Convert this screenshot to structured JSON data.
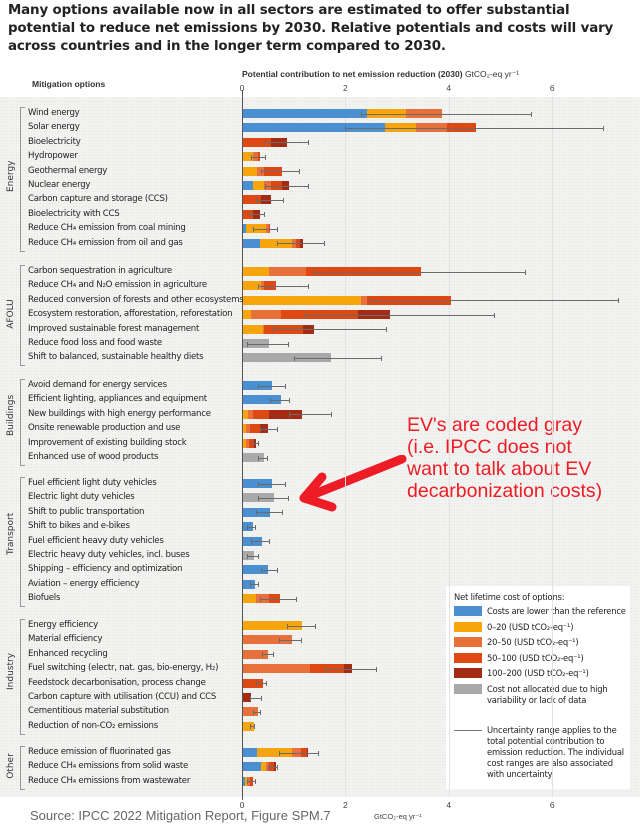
{
  "headline": "Many options available now in all sectors are estimated to offer substantial potential to reduce net emissions by 2030. Relative potentials and costs will vary across countries and in the longer term compared to 2030.",
  "column_headers": {
    "left": "Mitigation options",
    "axis": "Potential contribution to net emission reduction (2030)",
    "axis_unit": "GtCO₂-eq yr⁻¹"
  },
  "annotation": {
    "lines": [
      "EV's are coded gray",
      "(i.e. IPCC does not",
      "want to talk about EV",
      "decarbonization costs)"
    ],
    "color": "#ee1c25"
  },
  "legend": {
    "title": "Net lifetime cost of options:",
    "items": [
      {
        "label": "Costs are lower than the reference",
        "color": "#4a90d0"
      },
      {
        "label": "0–20 (USD tCO₂-eq⁻¹)",
        "color": "#f6a60c"
      },
      {
        "label": "20–50 (USD tCO₂-eq⁻¹)",
        "color": "#e8703a"
      },
      {
        "label": "50–100 (USD tCO₂-eq⁻¹)",
        "color": "#de4812"
      },
      {
        "label": "100–200 (USD tCO₂-eq⁻¹)",
        "color": "#a42c15"
      },
      {
        "label": "Cost not allocated due to high variability or lack of data",
        "color": "#a9a9a9"
      }
    ],
    "uncertainty_note": "Uncertainty range applies to the total potential contribution to emission reduction. The individual cost ranges are also associated with uncertainty"
  },
  "source": "Source: IPCC 2022 Mitigation Report, Figure SPM.7",
  "chart_data": {
    "type": "bar",
    "orientation": "horizontal-stacked",
    "title": "Potential contribution to net emission reduction (2030)",
    "xlabel": "GtCO₂-eq yr⁻¹",
    "xlim": [
      0,
      7.3
    ],
    "xticks": [
      0,
      2,
      4,
      6
    ],
    "grid": true,
    "legend_position": "lower-right",
    "series_names": [
      "Costs lower than reference",
      "0-20",
      "20-50",
      "50-100",
      "100-200",
      "Cost not allocated"
    ],
    "sectors": [
      {
        "name": "Energy",
        "options": [
          {
            "label": "Wind energy",
            "segments": [
              2.4,
              0.75,
              0.7,
              0,
              0,
              0
            ],
            "total": 3.85,
            "range": [
              2.3,
              5.6
            ]
          },
          {
            "label": "Solar energy",
            "segments": [
              2.75,
              0.6,
              0.6,
              0.55,
              0,
              0
            ],
            "total": 4.5,
            "range": [
              2.0,
              7.0
            ]
          },
          {
            "label": "Bioelectricity",
            "segments": [
              0,
              0,
              0,
              0.55,
              0.3,
              0
            ],
            "total": 0.85,
            "range": [
              0.45,
              1.3
            ]
          },
          {
            "label": "Hydropower",
            "segments": [
              0,
              0.2,
              0.1,
              0.02,
              0,
              0
            ],
            "total": 0.32,
            "range": [
              0.17,
              0.47
            ]
          },
          {
            "label": "Geothermal energy",
            "segments": [
              0,
              0.28,
              0.12,
              0.35,
              0,
              0
            ],
            "total": 0.75,
            "range": [
              0.37,
              1.12
            ]
          },
          {
            "label": "Nuclear energy",
            "segments": [
              0.2,
              0.2,
              0.15,
              0.2,
              0.15,
              0
            ],
            "total": 0.9,
            "range": [
              0.45,
              1.3
            ]
          },
          {
            "label": "Carbon capture and storage (CCS)",
            "segments": [
              0,
              0,
              0,
              0.35,
              0.2,
              0
            ],
            "total": 0.55,
            "range": [
              0.28,
              0.82
            ]
          },
          {
            "label": "Bioelectricity with CCS",
            "segments": [
              0,
              0,
              0,
              0.2,
              0.12,
              0
            ],
            "total": 0.32,
            "range": [
              0.16,
              0.45
            ]
          },
          {
            "label": "Reduce CH₄ emission from coal mining",
            "segments": [
              0.05,
              0.4,
              0.05,
              0.02,
              0,
              0
            ],
            "total": 0.52,
            "range": [
              0.22,
              0.7
            ]
          },
          {
            "label": "Reduce CH₄ emission from oil and gas",
            "segments": [
              0.32,
              0.62,
              0.08,
              0.08,
              0.06,
              0
            ],
            "total": 1.16,
            "range": [
              0.68,
              1.6
            ]
          }
        ]
      },
      {
        "name": "AFOLU",
        "options": [
          {
            "label": "Carbon sequestration in agriculture",
            "segments": [
              0,
              0.5,
              0.72,
              2.22,
              0,
              0
            ],
            "total": 3.44,
            "range": [
              1.4,
              5.5
            ]
          },
          {
            "label": "Reduce CH₄ and N₂O emission in agriculture",
            "segments": [
              0,
              0.35,
              0.05,
              0.23,
              0,
              0
            ],
            "total": 0.63,
            "range": [
              0.3,
              1.3
            ]
          },
          {
            "label": "Reduced conversion of forests and other ecosystems",
            "segments": [
              0,
              2.28,
              0.12,
              1.62,
              0,
              0
            ],
            "total": 4.02,
            "range": [
              2.5,
              7.3
            ]
          },
          {
            "label": "Ecosystem restoration, afforestation, reforestation",
            "segments": [
              0,
              0.15,
              0.58,
              1.5,
              0.62,
              0
            ],
            "total": 2.85,
            "range": [
              1.2,
              4.9
            ]
          },
          {
            "label": "Improved sustainable forest management",
            "segments": [
              0,
              0.39,
              0.02,
              0.75,
              0.22,
              0
            ],
            "total": 1.38,
            "range": [
              0.6,
              2.8
            ]
          },
          {
            "label": "Reduce food loss and food waste",
            "segments": [
              0,
              0,
              0,
              0,
              0,
              0.5
            ],
            "total": 0.5,
            "range": [
              0.1,
              0.9
            ]
          },
          {
            "label": "Shift to balanced, sustainable healthy diets",
            "segments": [
              0,
              0,
              0,
              0,
              0,
              1.7
            ],
            "total": 1.7,
            "range": [
              1.0,
              2.7
            ]
          }
        ]
      },
      {
        "name": "Buildings",
        "options": [
          {
            "label": "Avoid demand for energy services",
            "segments": [
              0.56,
              0,
              0,
              0,
              0,
              0
            ],
            "total": 0.56,
            "range": [
              0.3,
              0.85
            ]
          },
          {
            "label": "Efficient lighting, appliances and equipment",
            "segments": [
              0.73,
              0,
              0,
              0,
              0,
              0
            ],
            "total": 0.73,
            "range": [
              0.55,
              0.92
            ]
          },
          {
            "label": "New buildings with high energy performance",
            "segments": [
              0,
              0.1,
              0.1,
              0.3,
              0.65,
              0
            ],
            "total": 1.15,
            "range": [
              0.9,
              1.75
            ]
          },
          {
            "label": "Onsite renewable production and use",
            "segments": [
              0,
              0.06,
              0.08,
              0.18,
              0.16,
              0
            ],
            "total": 0.48,
            "range": [
              0.35,
              0.7
            ]
          },
          {
            "label": "Improvement of existing building stock",
            "segments": [
              0,
              0.06,
              0.05,
              0.1,
              0.05,
              0
            ],
            "total": 0.26,
            "range": [
              0.2,
              0.33
            ]
          },
          {
            "label": "Enhanced use of wood products",
            "segments": [
              0,
              0,
              0,
              0,
              0,
              0.4
            ],
            "total": 0.4,
            "range": [
              0.3,
              0.5
            ]
          }
        ]
      },
      {
        "name": "Transport",
        "options": [
          {
            "label": "Fuel efficient light duty vehicles",
            "segments": [
              0.56,
              0,
              0,
              0,
              0,
              0
            ],
            "total": 0.56,
            "range": [
              0.3,
              0.85
            ]
          },
          {
            "label": "Electric light duty vehicles",
            "segments": [
              0,
              0,
              0,
              0,
              0,
              0.6
            ],
            "total": 0.6,
            "range": [
              0.3,
              0.9
            ]
          },
          {
            "label": "Shift to public transportation",
            "segments": [
              0.53,
              0,
              0,
              0,
              0,
              0
            ],
            "total": 0.53,
            "range": [
              0.28,
              0.8
            ]
          },
          {
            "label": "Shift to bikes and e-bikes",
            "segments": [
              0.19,
              0,
              0,
              0,
              0,
              0
            ],
            "total": 0.19,
            "range": [
              0.1,
              0.28
            ]
          },
          {
            "label": "Fuel efficient heavy duty vehicles",
            "segments": [
              0.37,
              0,
              0,
              0,
              0,
              0
            ],
            "total": 0.37,
            "range": [
              0.18,
              0.55
            ]
          },
          {
            "label": "Electric heavy duty vehicles, incl. buses",
            "segments": [
              0,
              0,
              0,
              0,
              0,
              0.21
            ],
            "total": 0.21,
            "range": [
              0.1,
              0.33
            ]
          },
          {
            "label": "Shipping – efficiency and optimization",
            "segments": [
              0.48,
              0,
              0,
              0,
              0,
              0
            ],
            "total": 0.48,
            "range": [
              0.37,
              0.69
            ]
          },
          {
            "label": "Aviation – energy efficiency",
            "segments": [
              0.23,
              0,
              0,
              0,
              0,
              0
            ],
            "total": 0.23,
            "range": [
              0.15,
              0.33
            ]
          },
          {
            "label": "Biofuels",
            "segments": [
              0,
              0.26,
              0.25,
              0.2,
              0,
              0
            ],
            "total": 0.71,
            "range": [
              0.35,
              1.06
            ]
          }
        ]
      },
      {
        "name": "Industry",
        "options": [
          {
            "label": "Energy efficiency",
            "segments": [
              0,
              1.15,
              0,
              0,
              0,
              0
            ],
            "total": 1.15,
            "range": [
              0.87,
              1.43
            ]
          },
          {
            "label": "Material efficiency",
            "segments": [
              0,
              0,
              0.94,
              0,
              0,
              0
            ],
            "total": 0.94,
            "range": [
              0.71,
              1.17
            ]
          },
          {
            "label": "Enhanced recycling",
            "segments": [
              0,
              0,
              0.48,
              0,
              0,
              0
            ],
            "total": 0.48,
            "range": [
              0.38,
              0.61
            ]
          },
          {
            "label": "Fuel switching (electr, nat. gas, bio-energy, H₂)",
            "segments": [
              0,
              0,
              1.29,
              0.67,
              0.15,
              0
            ],
            "total": 2.11,
            "range": [
              1.6,
              2.62
            ]
          },
          {
            "label": "Feedstock decarbonisation, process change",
            "segments": [
              0,
              0,
              0,
              0.39,
              0,
              0
            ],
            "total": 0.39,
            "range": [
              0.28,
              0.49
            ]
          },
          {
            "label": "Carbon capture with utilisation (CCU) and CCS",
            "segments": [
              0,
              0,
              0,
              0,
              0.16,
              0
            ],
            "total": 0.16,
            "range": [
              0.16,
              0.38
            ]
          },
          {
            "label": "Cementitious material substitution",
            "segments": [
              0,
              0,
              0.29,
              0,
              0,
              0
            ],
            "total": 0.29,
            "range": [
              0.21,
              0.36
            ]
          },
          {
            "label": "Reduction of non-CO₂ emissions",
            "segments": [
              0,
              0.21,
              0,
              0,
              0,
              0
            ],
            "total": 0.21,
            "range": [
              0.15,
              0.26
            ]
          }
        ]
      },
      {
        "name": "Other",
        "options": [
          {
            "label": "Reduce emission of fluorinated gas",
            "segments": [
              0.27,
              0.67,
              0.18,
              0.12,
              0.02,
              0
            ],
            "total": 1.26,
            "range": [
              0.72,
              1.49
            ]
          },
          {
            "label": "Reduce CH₄ emissions from solid waste",
            "segments": [
              0.35,
              0.1,
              0.05,
              0.1,
              0.04,
              0
            ],
            "total": 0.64,
            "range": [
              0.5,
              0.7
            ]
          },
          {
            "label": "Reduce CH₄ emissions from wastewater",
            "segments": [
              0.03,
              0.05,
              0.05,
              0.07,
              0,
              0
            ],
            "total": 0.2,
            "range": [
              0.1,
              0.28
            ]
          }
        ]
      }
    ]
  }
}
